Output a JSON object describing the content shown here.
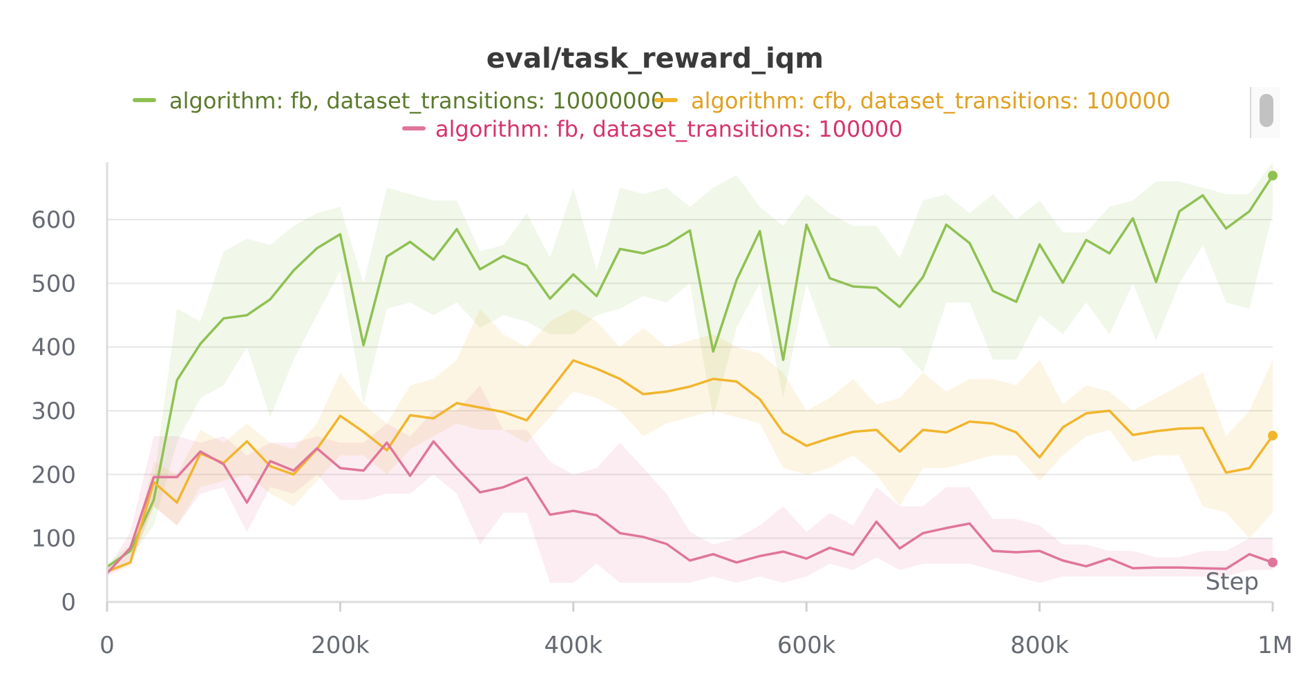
{
  "chart_data": {
    "type": "line",
    "title": "eval/task_reward_iqm",
    "xlabel": "Step",
    "ylabel": "",
    "xlim": [
      0,
      1000000
    ],
    "ylim": [
      0,
      690
    ],
    "x_ticks": [
      0,
      200000,
      400000,
      600000,
      800000,
      1000000
    ],
    "x_tick_labels": [
      "0",
      "200k",
      "400k",
      "600k",
      "800k",
      "1M"
    ],
    "y_ticks": [
      0,
      100,
      200,
      300,
      400,
      500,
      600
    ],
    "y_tick_labels": [
      "0",
      "100",
      "200",
      "300",
      "400",
      "500",
      "600"
    ],
    "grid": true,
    "legend_position": "top",
    "series": [
      {
        "name": "algorithm: fb, dataset_transitions: 10000000",
        "color": "#8fc152",
        "x": [
          0,
          20000,
          40000,
          60000,
          80000,
          100000,
          120000,
          140000,
          160000,
          180000,
          200000,
          220000,
          240000,
          260000,
          280000,
          300000,
          320000,
          340000,
          360000,
          380000,
          400000,
          420000,
          440000,
          460000,
          480000,
          500000,
          520000,
          540000,
          560000,
          580000,
          600000,
          620000,
          640000,
          660000,
          680000,
          700000,
          720000,
          740000,
          760000,
          780000,
          800000,
          820000,
          840000,
          860000,
          880000,
          900000,
          920000,
          940000,
          960000,
          980000,
          1000000
        ],
        "y": [
          55,
          80,
          160,
          348,
          405,
          445,
          450,
          475,
          520,
          555,
          577,
          403,
          542,
          565,
          537,
          585,
          522,
          543,
          528,
          476,
          514,
          480,
          554,
          547,
          560,
          583,
          393,
          505,
          582,
          380,
          592,
          508,
          495,
          493,
          463,
          510,
          592,
          563,
          488,
          471,
          561,
          501,
          568,
          547,
          602,
          502,
          613,
          638,
          586,
          613,
          669
        ],
        "lower": [
          50,
          70,
          120,
          250,
          320,
          340,
          400,
          290,
          380,
          450,
          520,
          310,
          460,
          470,
          450,
          470,
          430,
          450,
          440,
          420,
          420,
          450,
          460,
          480,
          470,
          500,
          290,
          430,
          500,
          320,
          500,
          400,
          400,
          400,
          400,
          360,
          470,
          470,
          380,
          380,
          450,
          420,
          470,
          420,
          500,
          410,
          500,
          560,
          470,
          460,
          610
        ],
        "upper": [
          60,
          90,
          190,
          460,
          440,
          550,
          570,
          560,
          590,
          610,
          620,
          500,
          650,
          640,
          630,
          630,
          550,
          560,
          610,
          540,
          650,
          520,
          650,
          640,
          650,
          620,
          650,
          670,
          620,
          590,
          640,
          610,
          590,
          590,
          540,
          630,
          640,
          610,
          640,
          600,
          630,
          580,
          580,
          620,
          630,
          660,
          660,
          650,
          640,
          640,
          690
        ]
      },
      {
        "name": "algorithm: cfb, dataset_transitions: 100000",
        "color": "#f1b52e",
        "x": [
          0,
          20000,
          40000,
          60000,
          80000,
          100000,
          120000,
          140000,
          160000,
          180000,
          200000,
          220000,
          240000,
          260000,
          280000,
          300000,
          320000,
          340000,
          360000,
          380000,
          400000,
          420000,
          440000,
          460000,
          480000,
          500000,
          520000,
          540000,
          560000,
          580000,
          600000,
          620000,
          640000,
          660000,
          680000,
          700000,
          720000,
          740000,
          760000,
          780000,
          800000,
          820000,
          840000,
          860000,
          880000,
          900000,
          920000,
          940000,
          960000,
          980000,
          1000000
        ],
        "y": [
          48,
          62,
          188,
          156,
          233,
          218,
          252,
          213,
          200,
          240,
          292,
          267,
          238,
          293,
          288,
          312,
          305,
          298,
          285,
          332,
          379,
          366,
          350,
          326,
          330,
          338,
          350,
          346,
          318,
          266,
          245,
          257,
          267,
          270,
          236,
          270,
          266,
          283,
          280,
          266,
          227,
          274,
          296,
          300,
          262,
          268,
          272,
          273,
          203,
          210,
          261
        ],
        "lower": [
          45,
          55,
          150,
          120,
          180,
          190,
          200,
          170,
          150,
          190,
          230,
          230,
          200,
          240,
          260,
          280,
          270,
          270,
          250,
          290,
          330,
          320,
          300,
          260,
          280,
          290,
          300,
          290,
          280,
          210,
          200,
          210,
          230,
          200,
          150,
          210,
          210,
          220,
          230,
          230,
          190,
          230,
          260,
          270,
          220,
          230,
          230,
          150,
          140,
          100,
          140
        ],
        "upper": [
          52,
          70,
          220,
          200,
          270,
          250,
          280,
          250,
          240,
          280,
          360,
          310,
          280,
          340,
          350,
          380,
          460,
          420,
          400,
          440,
          460,
          440,
          400,
          430,
          400,
          410,
          420,
          400,
          390,
          360,
          300,
          320,
          350,
          310,
          320,
          360,
          330,
          350,
          350,
          340,
          380,
          310,
          340,
          330,
          300,
          320,
          340,
          360,
          260,
          300,
          380
        ]
      },
      {
        "name": "algorithm: fb, dataset_transitions: 100000",
        "color": "#e0759b",
        "x": [
          0,
          20000,
          40000,
          60000,
          80000,
          100000,
          120000,
          140000,
          160000,
          180000,
          200000,
          220000,
          240000,
          260000,
          280000,
          300000,
          320000,
          340000,
          360000,
          380000,
          400000,
          420000,
          440000,
          460000,
          480000,
          500000,
          520000,
          540000,
          560000,
          580000,
          600000,
          620000,
          640000,
          660000,
          680000,
          700000,
          720000,
          740000,
          760000,
          780000,
          800000,
          820000,
          840000,
          860000,
          880000,
          900000,
          920000,
          940000,
          960000,
          980000,
          1000000
        ],
        "y": [
          45,
          85,
          196,
          196,
          236,
          216,
          156,
          221,
          206,
          241,
          210,
          206,
          250,
          198,
          252,
          210,
          172,
          180,
          195,
          137,
          143,
          136,
          108,
          102,
          91,
          65,
          75,
          62,
          72,
          79,
          68,
          85,
          74,
          126,
          84,
          108,
          116,
          123,
          80,
          78,
          80,
          65,
          56,
          68,
          53,
          54,
          54,
          53,
          52,
          75,
          62
        ],
        "lower": [
          40,
          60,
          150,
          120,
          170,
          180,
          110,
          180,
          170,
          200,
          160,
          160,
          170,
          170,
          200,
          170,
          90,
          140,
          140,
          30,
          30,
          60,
          30,
          30,
          30,
          30,
          40,
          30,
          40,
          30,
          40,
          60,
          50,
          70,
          50,
          60,
          60,
          60,
          50,
          40,
          30,
          40,
          40,
          40,
          40,
          40,
          40,
          40,
          40,
          50,
          50
        ],
        "upper": [
          50,
          110,
          260,
          260,
          250,
          260,
          230,
          250,
          250,
          260,
          250,
          250,
          280,
          260,
          300,
          300,
          340,
          270,
          270,
          220,
          200,
          210,
          250,
          210,
          170,
          110,
          90,
          100,
          120,
          150,
          110,
          140,
          120,
          180,
          150,
          150,
          180,
          180,
          130,
          130,
          120,
          90,
          90,
          80,
          80,
          70,
          70,
          80,
          80,
          100,
          100
        ]
      }
    ]
  }
}
